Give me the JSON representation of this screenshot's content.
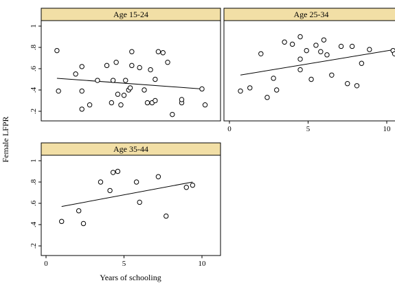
{
  "chart_data": {
    "type": "scatter",
    "xlabel": "Years of schooling",
    "ylabel": "Female LFPR",
    "x_ticks": [
      0,
      5,
      10
    ],
    "y_ticks": [
      0.2,
      0.4,
      0.6,
      0.8,
      1.0
    ],
    "y_tick_labels": [
      ".2",
      ".4",
      ".6",
      ".8",
      "1"
    ],
    "panels": [
      {
        "title": "Age 15-24",
        "points": [
          [
            0.7,
            0.77
          ],
          [
            0.8,
            0.39
          ],
          [
            1.9,
            0.55
          ],
          [
            2.3,
            0.62
          ],
          [
            2.3,
            0.39
          ],
          [
            2.3,
            0.22
          ],
          [
            2.8,
            0.26
          ],
          [
            3.3,
            0.49
          ],
          [
            3.9,
            0.63
          ],
          [
            4.2,
            0.28
          ],
          [
            4.3,
            0.49
          ],
          [
            4.5,
            0.66
          ],
          [
            4.6,
            0.36
          ],
          [
            4.8,
            0.26
          ],
          [
            5.0,
            0.35
          ],
          [
            5.1,
            0.49
          ],
          [
            5.3,
            0.4
          ],
          [
            5.4,
            0.42
          ],
          [
            5.5,
            0.63
          ],
          [
            5.5,
            0.76
          ],
          [
            6.0,
            0.61
          ],
          [
            6.3,
            0.4
          ],
          [
            6.5,
            0.28
          ],
          [
            6.7,
            0.59
          ],
          [
            6.8,
            0.28
          ],
          [
            7.0,
            0.3
          ],
          [
            7.0,
            0.5
          ],
          [
            7.2,
            0.76
          ],
          [
            7.5,
            0.75
          ],
          [
            7.8,
            0.66
          ],
          [
            8.1,
            0.17
          ],
          [
            8.7,
            0.28
          ],
          [
            8.7,
            0.31
          ],
          [
            10.0,
            0.41
          ],
          [
            10.2,
            0.26
          ]
        ],
        "fit": [
          [
            0.7,
            0.51
          ],
          [
            10.0,
            0.41
          ]
        ]
      },
      {
        "title": "Age 25-34",
        "points": [
          [
            0.7,
            0.39
          ],
          [
            1.3,
            0.42
          ],
          [
            2.0,
            0.74
          ],
          [
            2.4,
            0.33
          ],
          [
            2.8,
            0.51
          ],
          [
            3.0,
            0.4
          ],
          [
            3.5,
            0.85
          ],
          [
            4.0,
            0.83
          ],
          [
            4.5,
            0.9
          ],
          [
            4.5,
            0.69
          ],
          [
            4.5,
            0.59
          ],
          [
            4.9,
            0.77
          ],
          [
            5.2,
            0.5
          ],
          [
            5.5,
            0.82
          ],
          [
            5.8,
            0.76
          ],
          [
            6.0,
            0.87
          ],
          [
            6.2,
            0.73
          ],
          [
            6.5,
            0.54
          ],
          [
            7.1,
            0.81
          ],
          [
            7.5,
            0.46
          ],
          [
            7.8,
            0.81
          ],
          [
            8.1,
            0.44
          ],
          [
            8.4,
            0.65
          ],
          [
            8.9,
            0.78
          ],
          [
            10.4,
            0.77
          ],
          [
            10.5,
            0.74
          ]
        ],
        "fit": [
          [
            0.7,
            0.54
          ],
          [
            10.5,
            0.78
          ]
        ]
      },
      {
        "title": "Age 35-44",
        "points": [
          [
            1.0,
            0.43
          ],
          [
            2.1,
            0.53
          ],
          [
            2.4,
            0.41
          ],
          [
            3.5,
            0.8
          ],
          [
            4.1,
            0.72
          ],
          [
            4.3,
            0.89
          ],
          [
            4.6,
            0.9
          ],
          [
            5.8,
            0.8
          ],
          [
            6.0,
            0.61
          ],
          [
            7.2,
            0.85
          ],
          [
            7.7,
            0.48
          ],
          [
            9.0,
            0.75
          ],
          [
            9.4,
            0.77
          ]
        ],
        "fit": [
          [
            1.0,
            0.57
          ],
          [
            9.4,
            0.8
          ]
        ]
      }
    ]
  }
}
